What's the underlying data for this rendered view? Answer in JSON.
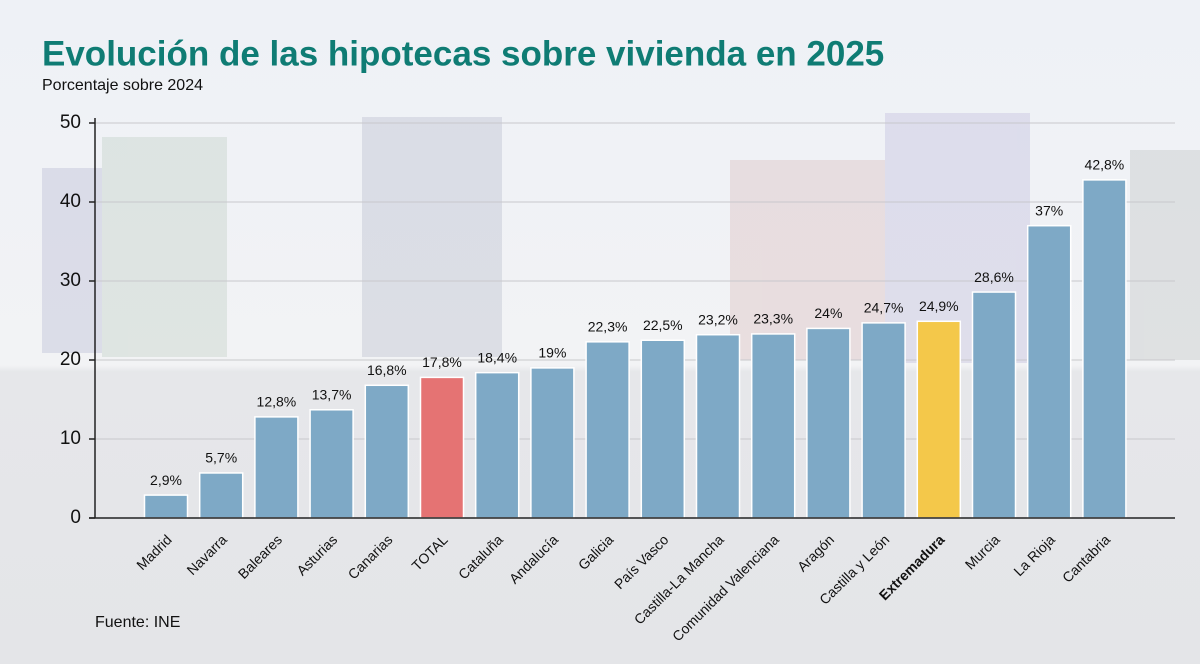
{
  "chart_data": {
    "type": "bar",
    "title": "Evolución de las hipotecas sobre vivienda en 2025",
    "subtitle": "Porcentaje sobre 2024",
    "source": "Fuente: INE",
    "categories": [
      "Madrid",
      "Navarra",
      "Baleares",
      "Asturias",
      "Canarias",
      "TOTAL",
      "Cataluña",
      "Andalucía",
      "Galicia",
      "País Vasco",
      "Castilla-La Mancha",
      "Comunidad Valenciana",
      "Aragón",
      "Castilla y León",
      "Extremadura",
      "Murcia",
      "La Rioja",
      "Cantabria"
    ],
    "values": [
      2.9,
      5.7,
      12.8,
      13.7,
      16.8,
      17.8,
      18.4,
      19,
      22.3,
      22.5,
      23.2,
      23.3,
      24,
      24.7,
      24.9,
      28.6,
      37,
      42.8
    ],
    "value_labels": [
      "2,9%",
      "5,7%",
      "12,8%",
      "13,7%",
      "16,8%",
      "17,8%",
      "18,4%",
      "19%",
      "22,3%",
      "22,5%",
      "23,2%",
      "23,3%",
      "24%",
      "24,7%",
      "24,9%",
      "28,6%",
      "37%",
      "42,8%"
    ],
    "colors": [
      "#7ea9c6",
      "#7ea9c6",
      "#7ea9c6",
      "#7ea9c6",
      "#7ea9c6",
      "#e57373",
      "#7ea9c6",
      "#7ea9c6",
      "#7ea9c6",
      "#7ea9c6",
      "#7ea9c6",
      "#7ea9c6",
      "#7ea9c6",
      "#7ea9c6",
      "#f4c84a",
      "#7ea9c6",
      "#7ea9c6",
      "#7ea9c6"
    ],
    "bold_categories": [
      false,
      false,
      false,
      false,
      false,
      false,
      false,
      false,
      false,
      false,
      false,
      false,
      false,
      false,
      true,
      false,
      false,
      false
    ],
    "ylim": [
      0,
      50
    ],
    "yticks": [
      0,
      10,
      20,
      30,
      40,
      50
    ],
    "grid": true
  }
}
